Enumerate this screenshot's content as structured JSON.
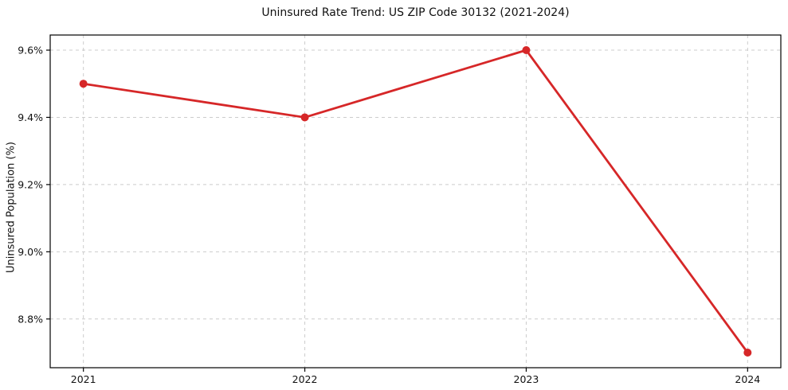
{
  "chart_data": {
    "type": "line",
    "title": "Uninsured Rate Trend: US ZIP Code 30132 (2021-2024)",
    "xlabel": "",
    "ylabel": "Uninsured Population (%)",
    "x": [
      2021,
      2022,
      2023,
      2024
    ],
    "series": [
      {
        "name": "Uninsured rate",
        "values": [
          9.5,
          9.4,
          9.6,
          8.7
        ]
      }
    ],
    "xticks": [
      2021,
      2022,
      2023,
      2024
    ],
    "xtick_labels": [
      "2021",
      "2022",
      "2023",
      "2024"
    ],
    "yticks": [
      8.8,
      9.0,
      9.2,
      9.4,
      9.6
    ],
    "ytick_labels": [
      "8.8%",
      "9.0%",
      "9.2%",
      "9.4%",
      "9.6%"
    ],
    "xlim": [
      2020.85,
      2024.15
    ],
    "ylim": [
      8.655,
      9.645
    ],
    "grid": true,
    "grid_style": "dashed",
    "legend": "none",
    "line_color": "#d62728",
    "grid_color": "#cccccc",
    "spine_color": "#000000",
    "text_color": "#111111",
    "background_color": "#ffffff"
  }
}
